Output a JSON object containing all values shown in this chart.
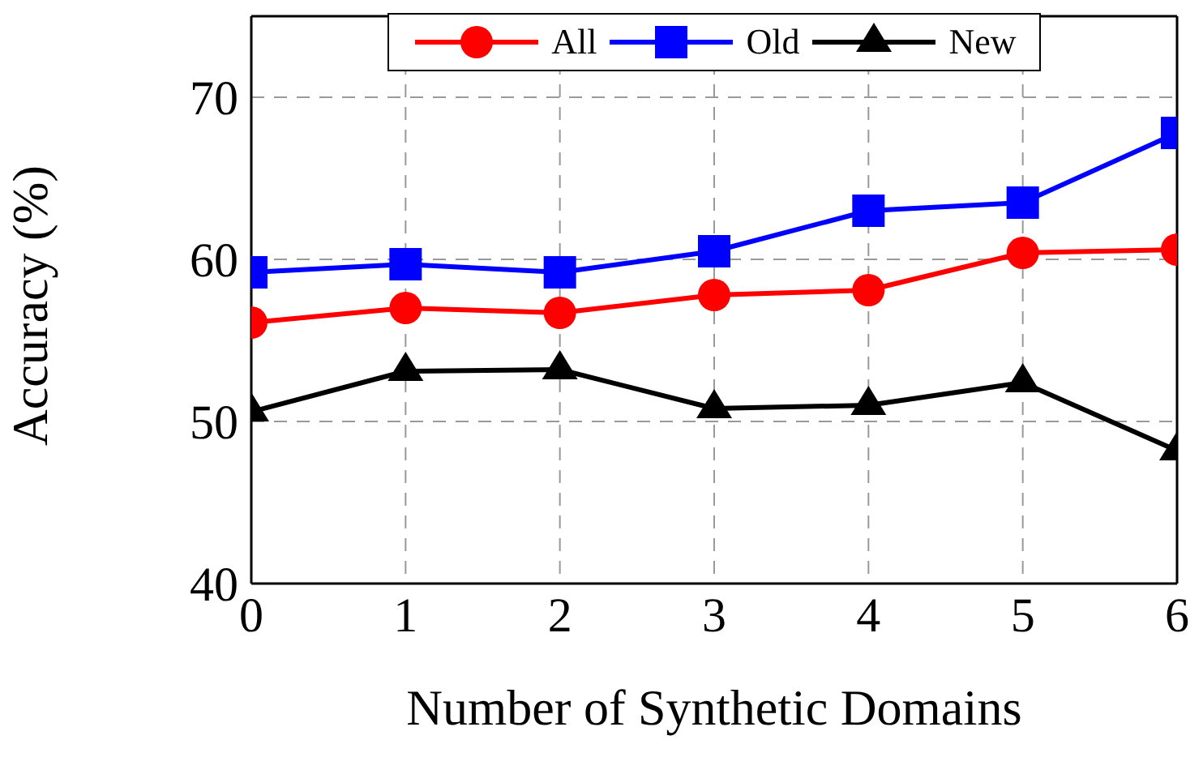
{
  "chart_data": {
    "type": "line",
    "xlabel": "Number of Synthetic Domains",
    "ylabel": "Accuracy (%)",
    "x": [
      0,
      1,
      2,
      3,
      4,
      5,
      6
    ],
    "series": [
      {
        "name": "All",
        "color": "#ff0000",
        "marker": "circle",
        "values": [
          56.1,
          57.0,
          56.7,
          57.8,
          58.1,
          60.4,
          60.6
        ]
      },
      {
        "name": "Old",
        "color": "#0000ff",
        "marker": "square",
        "values": [
          59.2,
          59.7,
          59.2,
          60.5,
          63.0,
          63.5,
          67.8
        ]
      },
      {
        "name": "New",
        "color": "#000000",
        "marker": "triangle",
        "values": [
          50.6,
          53.1,
          53.2,
          50.8,
          51.0,
          52.4,
          48.2
        ]
      }
    ],
    "xlim": [
      0,
      6
    ],
    "xticks": [
      0,
      1,
      2,
      3,
      4,
      5,
      6
    ],
    "ylim": [
      40,
      75
    ],
    "yticks": [
      40,
      50,
      60,
      70
    ],
    "grid": true,
    "legend": "top",
    "line_style": "solid"
  }
}
